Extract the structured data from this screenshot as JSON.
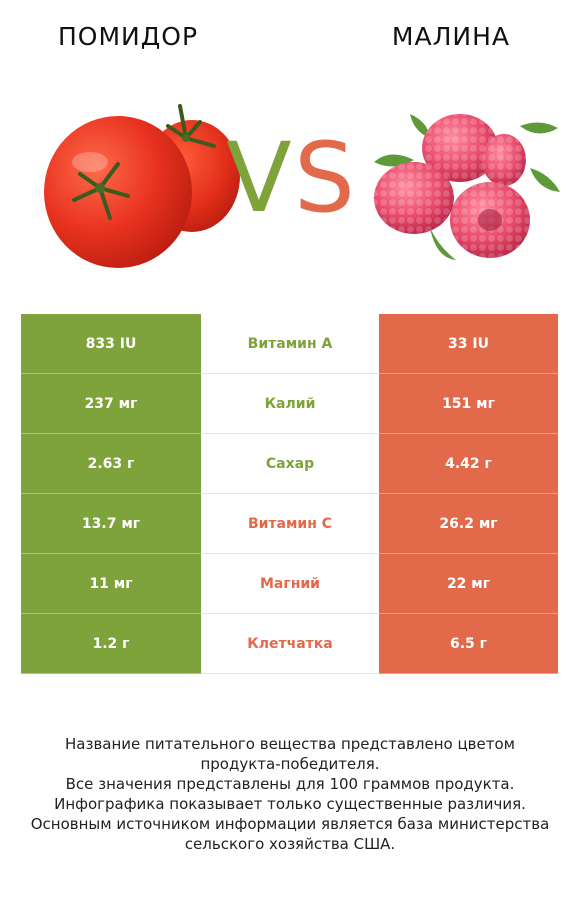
{
  "left_title": "ПОМИДОР",
  "right_title": "МАЛИНА",
  "vs": {
    "v": "V",
    "s": "S"
  },
  "colors": {
    "tomato": "#7fa33b",
    "raspberry": "#e3694b",
    "tomato_fruit": "#e8321f",
    "raspberry_fruit": "#e84a6a"
  },
  "rows": [
    {
      "nutrient": "Витамин A",
      "left": "833 IU",
      "right": "33 IU",
      "winner": "tomato"
    },
    {
      "nutrient": "Калий",
      "left": "237 мг",
      "right": "151 мг",
      "winner": "tomato"
    },
    {
      "nutrient": "Сахар",
      "left": "2.63 г",
      "right": "4.42 г",
      "winner": "tomato"
    },
    {
      "nutrient": "Витамин C",
      "left": "13.7 мг",
      "right": "26.2 мг",
      "winner": "raspberry"
    },
    {
      "nutrient": "Магний",
      "left": "11 мг",
      "right": "22 мг",
      "winner": "raspberry"
    },
    {
      "nutrient": "Клетчатка",
      "left": "1.2 г",
      "right": "6.5 г",
      "winner": "raspberry"
    }
  ],
  "footnote": [
    "Название питательного вещества представлено цветом",
    "продукта-победителя.",
    "Все значения представлены для 100 граммов продукта.",
    "Инфографика показывает только существенные различия.",
    "Основным источником информации является база министерства",
    "сельского хозяйства США."
  ]
}
